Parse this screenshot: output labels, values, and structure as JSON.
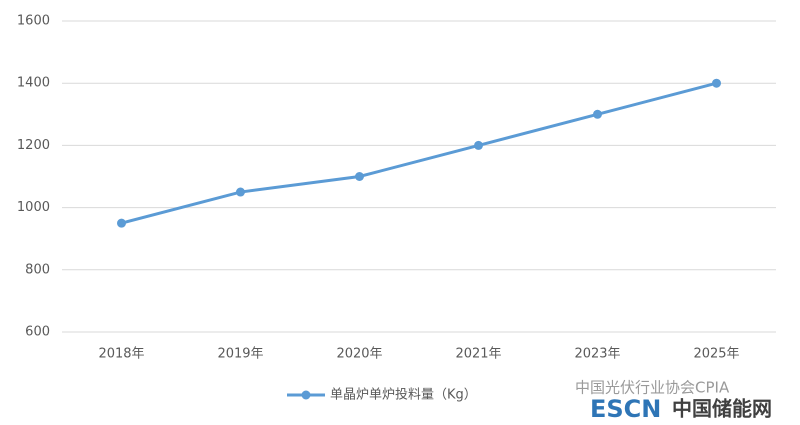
{
  "chart_data": {
    "type": "line",
    "categories": [
      "2018年",
      "2019年",
      "2020年",
      "2021年",
      "2023年",
      "2025年"
    ],
    "series": [
      {
        "name": "单晶炉单炉投料量（Kg）",
        "color": "#5b9bd5",
        "values": [
          950,
          1050,
          1100,
          1200,
          1300,
          1400
        ]
      }
    ],
    "ylim": [
      600,
      1600
    ],
    "yticks": [
      600,
      800,
      1000,
      1200,
      1400,
      1600
    ],
    "grid": true,
    "legend": "bottom",
    "annotations": [
      "中国光伏行业协会CPIA",
      "ESCN",
      "中国储能网"
    ]
  }
}
